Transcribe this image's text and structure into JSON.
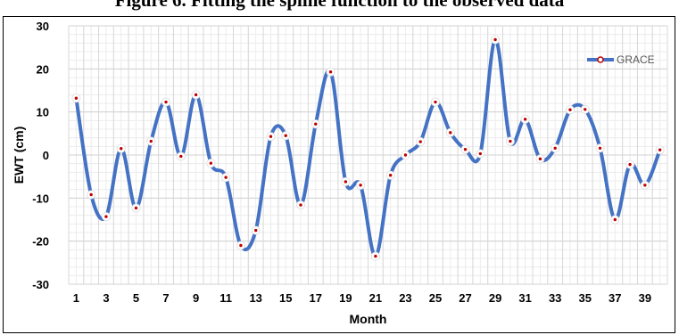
{
  "figure": {
    "title": "Figure 6. Fitting the spline function to the observed data"
  },
  "chart_data": {
    "type": "line",
    "title": "",
    "xlabel": "Month",
    "ylabel": "EWT (cm)",
    "x": [
      1,
      2,
      3,
      4,
      5,
      6,
      7,
      8,
      9,
      10,
      11,
      12,
      13,
      14,
      15,
      16,
      17,
      18,
      19,
      20,
      21,
      22,
      23,
      24,
      25,
      26,
      27,
      28,
      29,
      30,
      31,
      32,
      33,
      34,
      35,
      36,
      37,
      38,
      39,
      40
    ],
    "x_tick_labels": [
      "1",
      "3",
      "5",
      "7",
      "9",
      "11",
      "13",
      "15",
      "17",
      "19",
      "21",
      "23",
      "25",
      "27",
      "29",
      "31",
      "33",
      "35",
      "37",
      "39"
    ],
    "x_tick_values": [
      1,
      3,
      5,
      7,
      9,
      11,
      13,
      15,
      17,
      19,
      21,
      23,
      25,
      27,
      29,
      31,
      33,
      35,
      37,
      39
    ],
    "xlim": [
      0.5,
      40.5
    ],
    "ylim": [
      -30,
      30
    ],
    "y_ticks": [
      -30,
      -20,
      -10,
      0,
      10,
      20,
      30
    ],
    "grid": true,
    "legend_position": "top-right",
    "series": [
      {
        "name": "GRACE",
        "color": "#4472C4",
        "marker_color": "#C00000",
        "smooth": true,
        "values": [
          13.2,
          -9.2,
          -14.3,
          1.5,
          -12.3,
          3.2,
          12.3,
          -0.3,
          14.0,
          -1.9,
          -5.2,
          -21.0,
          -17.5,
          4.3,
          4.5,
          -11.6,
          7.2,
          19.3,
          -6.2,
          -7.0,
          -23.5,
          -4.7,
          0.0,
          3.1,
          12.3,
          5.2,
          1.3,
          0.3,
          26.8,
          3.2,
          8.3,
          -0.9,
          1.6,
          10.5,
          10.6,
          1.6,
          -15.0,
          -2.2,
          -7.0,
          1.2
        ]
      }
    ]
  }
}
